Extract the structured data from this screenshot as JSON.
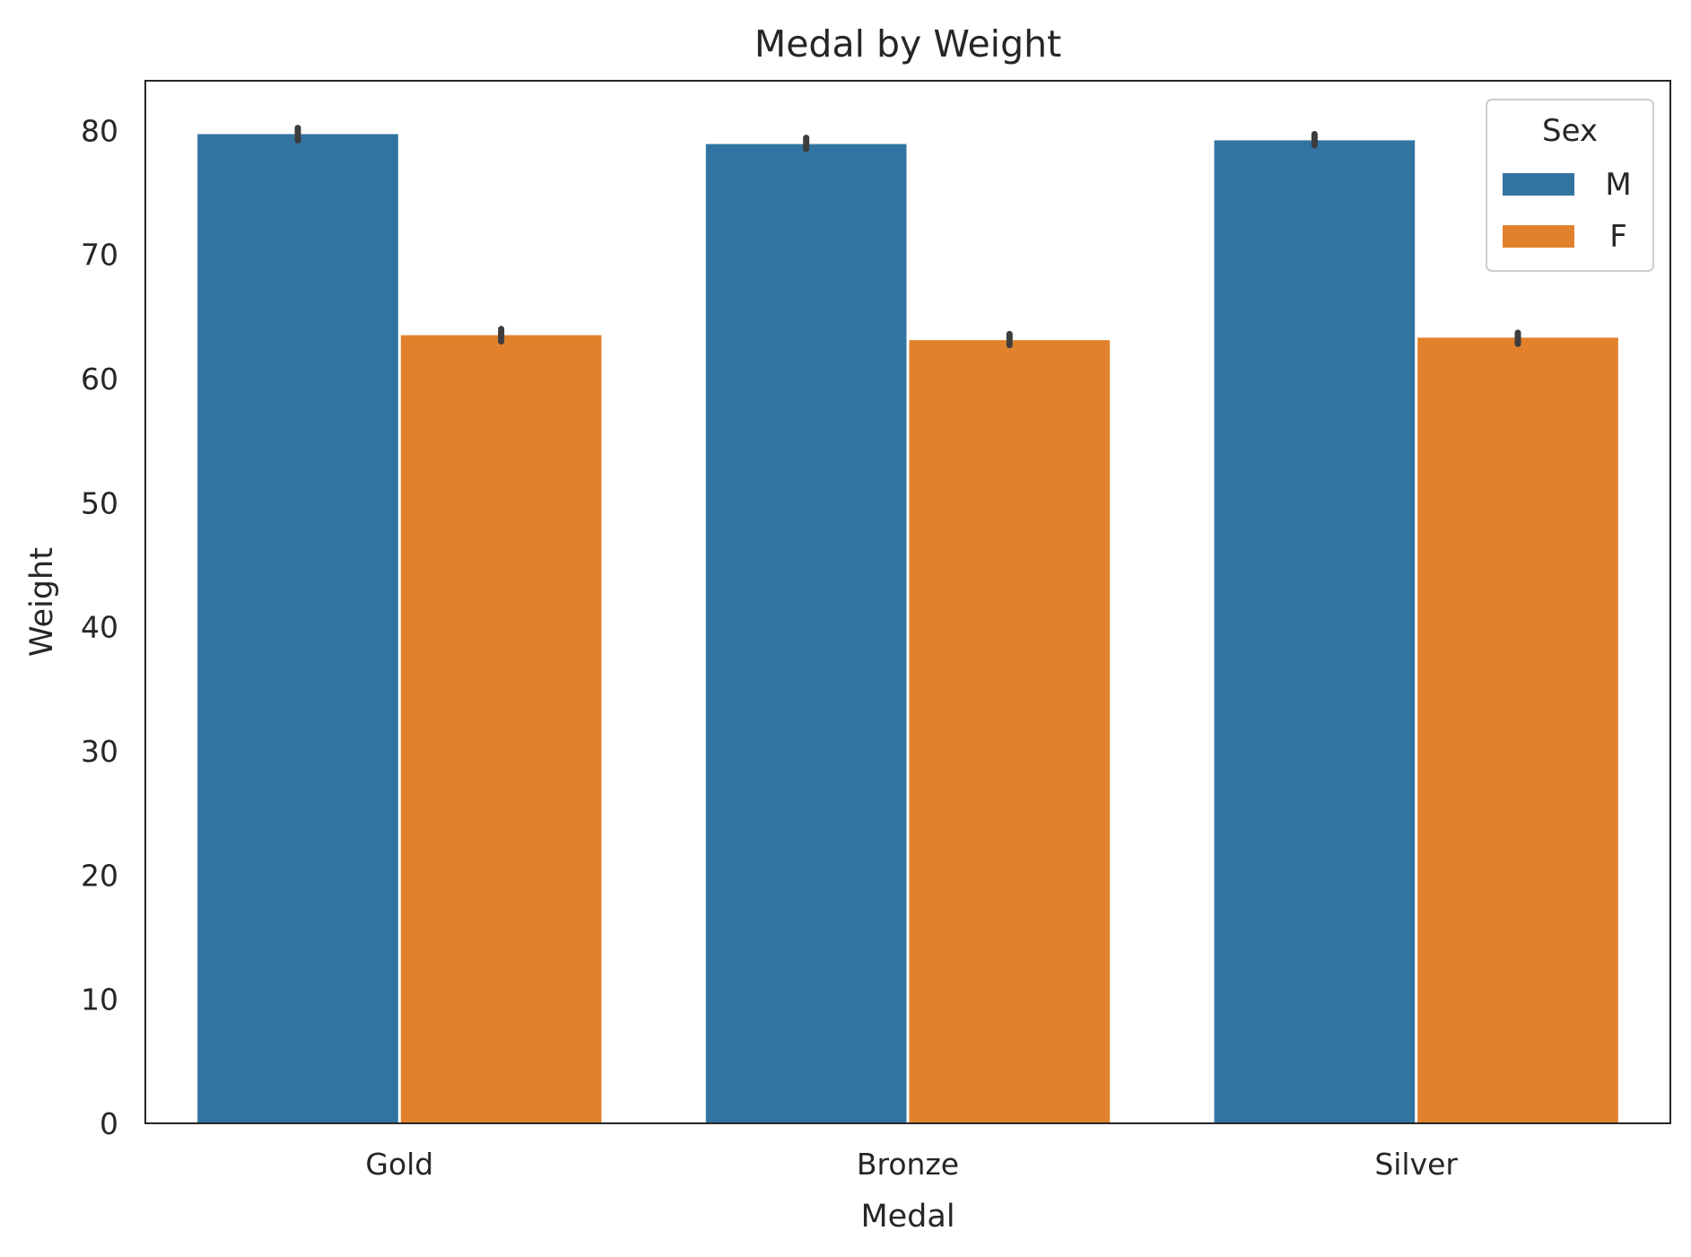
{
  "chart_data": {
    "type": "bar",
    "title": "Medal by Weight",
    "xlabel": "Medal",
    "ylabel": "Weight",
    "categories": [
      "Gold",
      "Bronze",
      "Silver"
    ],
    "ylim": [
      0,
      84
    ],
    "yticks": [
      0,
      10,
      20,
      30,
      40,
      50,
      60,
      70,
      80
    ],
    "grid": false,
    "legend": {
      "title": "Sex",
      "placement": "top-right"
    },
    "series": [
      {
        "name": "M",
        "color": "#3274a1",
        "values": [
          79.7,
          78.9,
          79.2
        ],
        "ci": [
          [
            79.2,
            80.2
          ],
          [
            78.5,
            79.4
          ],
          [
            78.8,
            79.7
          ]
        ]
      },
      {
        "name": "F",
        "color": "#e1812c",
        "values": [
          63.5,
          63.1,
          63.3
        ],
        "ci": [
          [
            63.0,
            64.0
          ],
          [
            62.7,
            63.6
          ],
          [
            62.8,
            63.7
          ]
        ]
      }
    ]
  }
}
